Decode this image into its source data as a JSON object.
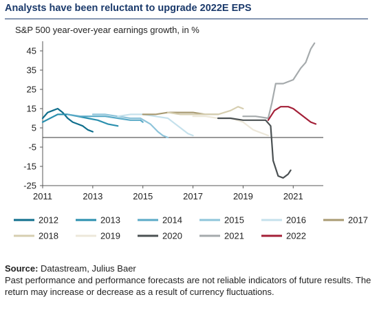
{
  "title": "Analysts have been reluctant to upgrade 2022E EPS",
  "subtitle": "S&P 500 year-over-year earnings growth, in %",
  "source_label": "Source:",
  "source_value": "Datastream, Julius Baer",
  "disclaimer": "Past performance and performance forecasts are not reliable indicators of future results. The return may increase or decrease as a result of currency fluctuations.",
  "chart_data": {
    "type": "line",
    "title": "S&P 500 year-over-year earnings growth, in %",
    "xlabel": "",
    "ylabel": "",
    "xlim": [
      2011,
      2022.2
    ],
    "ylim": [
      -25,
      50
    ],
    "yticks": [
      45,
      35,
      25,
      15,
      5,
      -5,
      -15,
      -25
    ],
    "xticks": [
      2011,
      2013,
      2015,
      2017,
      2019,
      2021
    ],
    "grid": false,
    "legend": "bottom",
    "series": [
      {
        "name": "2012",
        "color": "#0f6e8c",
        "x": [
          2011.0,
          2011.2,
          2011.4,
          2011.6,
          2011.8,
          2012.0,
          2012.2,
          2012.4,
          2012.6,
          2012.8,
          2013.0
        ],
        "y": [
          10,
          13,
          14,
          15,
          13,
          10,
          8,
          7,
          6,
          4,
          3
        ]
      },
      {
        "name": "2013",
        "color": "#2a8fae",
        "x": [
          2011.0,
          2011.3,
          2011.6,
          2012.0,
          2012.4,
          2012.8,
          2013.2,
          2013.6,
          2014.0
        ],
        "y": [
          8,
          10,
          12,
          12,
          11,
          10,
          9,
          7,
          6
        ]
      },
      {
        "name": "2014",
        "color": "#5aaac7",
        "x": [
          2012.0,
          2012.5,
          2013.0,
          2013.5,
          2014.0,
          2014.5,
          2014.9,
          2015.0
        ],
        "y": [
          12,
          11,
          11,
          11,
          10,
          9,
          9,
          8
        ]
      },
      {
        "name": "2015",
        "color": "#8ec4da",
        "x": [
          2013.0,
          2013.5,
          2014.0,
          2014.5,
          2014.9,
          2015.3,
          2015.6,
          2015.8,
          2016.0
        ],
        "y": [
          12,
          12,
          11,
          10,
          10,
          7,
          3,
          1,
          0
        ]
      },
      {
        "name": "2016",
        "color": "#c5e1ec",
        "x": [
          2014.0,
          2014.5,
          2015.0,
          2015.5,
          2016.0,
          2016.5,
          2016.8,
          2017.0
        ],
        "y": [
          11,
          12,
          12,
          11,
          10,
          5,
          2,
          1
        ]
      },
      {
        "name": "2017",
        "color": "#a89a72",
        "x": [
          2015.0,
          2015.5,
          2016.0,
          2016.5,
          2017.0,
          2017.5,
          2017.8,
          2018.0
        ],
        "y": [
          12,
          12,
          13,
          13,
          13,
          12,
          12,
          12
        ]
      },
      {
        "name": "2018",
        "color": "#d6ceb0",
        "x": [
          2016.0,
          2016.5,
          2017.0,
          2017.5,
          2018.0,
          2018.5,
          2018.8,
          2019.0
        ],
        "y": [
          13,
          12,
          12,
          12,
          12,
          14,
          16,
          15
        ]
      },
      {
        "name": "2019",
        "color": "#ede8da",
        "x": [
          2017.0,
          2017.5,
          2018.0,
          2018.5,
          2019.0,
          2019.4,
          2019.8,
          2020.0
        ],
        "y": [
          11,
          11,
          10,
          10,
          8,
          4,
          2,
          1
        ]
      },
      {
        "name": "2020",
        "color": "#4a5052",
        "x": [
          2018.0,
          2018.5,
          2019.0,
          2019.5,
          2019.9,
          2020.1,
          2020.2,
          2020.4,
          2020.6,
          2020.8,
          2020.9
        ],
        "y": [
          10,
          10,
          9,
          9,
          9,
          6,
          -12,
          -20,
          -21,
          -19,
          -17
        ]
      },
      {
        "name": "2021",
        "color": "#a5aaac",
        "x": [
          2019.0,
          2019.5,
          2020.0,
          2020.15,
          2020.3,
          2020.6,
          2021.0,
          2021.3,
          2021.5,
          2021.7,
          2021.85
        ],
        "y": [
          11,
          11,
          10,
          18,
          28,
          28,
          30,
          36,
          39,
          46,
          49
        ]
      },
      {
        "name": "2022",
        "color": "#a31f37",
        "x": [
          2020.0,
          2020.25,
          2020.5,
          2020.8,
          2021.0,
          2021.3,
          2021.5,
          2021.7,
          2021.9
        ],
        "y": [
          9,
          14,
          16,
          16,
          15,
          12,
          10,
          8,
          7
        ]
      }
    ]
  }
}
